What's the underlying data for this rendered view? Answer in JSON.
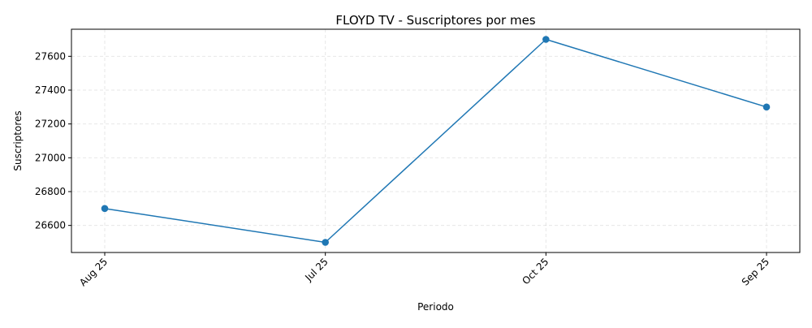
{
  "chart_data": {
    "type": "line",
    "title": "FLOYD TV  - Suscriptores por mes",
    "xlabel": "Periodo",
    "ylabel": "Suscriptores",
    "categories": [
      "Aug 25",
      "Jul 25",
      "Oct 25",
      "Sep 25"
    ],
    "series": [
      {
        "values": [
          26700,
          26500,
          27700,
          27300
        ],
        "color": "#1f77b4",
        "marker": "circle"
      }
    ],
    "ylim": [
      26440,
      27760
    ],
    "yticks": [
      26600,
      26800,
      27000,
      27200,
      27400,
      27600
    ],
    "ytick_labels": [
      "26600",
      "26800",
      "27000",
      "27200",
      "27400",
      "27600"
    ],
    "grid": true,
    "grid_style": "dashed",
    "xtick_rotation": 45,
    "legend": "none"
  }
}
